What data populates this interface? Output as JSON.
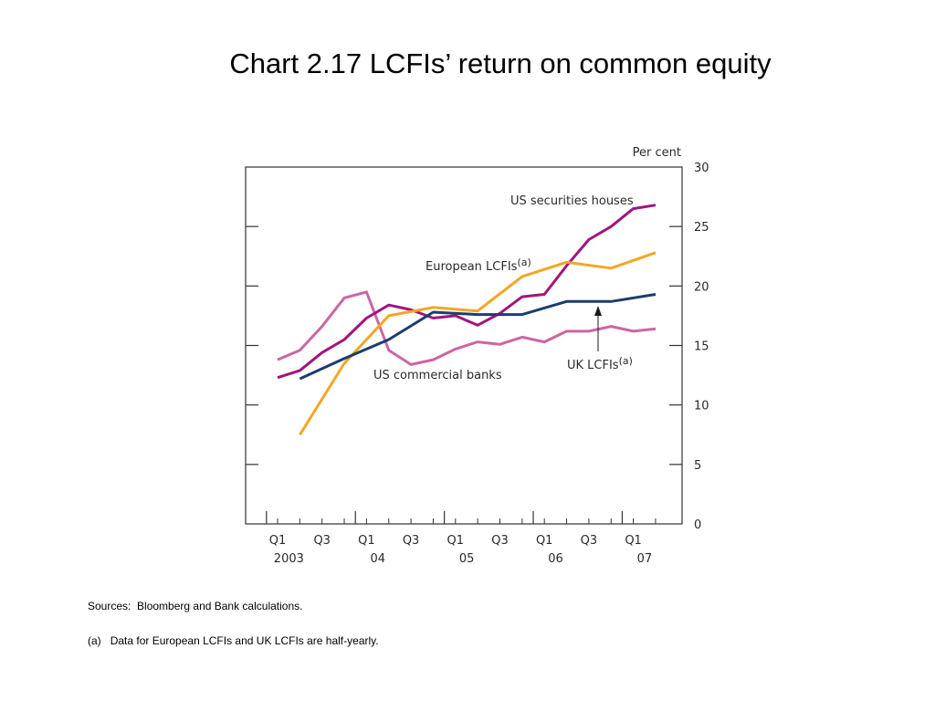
{
  "slide": {
    "title": "Chart 2.17  LCFIs’ return on common equity"
  },
  "footnotes": {
    "sources": "Sources:  Bloomberg and Bank calculations.",
    "note_a_marker": "(a)",
    "note_a_text": "Data for European LCFIs and UK LCFIs are half-yearly."
  },
  "chart_data": {
    "type": "line",
    "unit_label": "Per cent",
    "ylim": [
      0,
      30
    ],
    "yticks": [
      0,
      5,
      10,
      15,
      20,
      25,
      30
    ],
    "x_ticks": [
      {
        "label": "Q1",
        "x": "2003 Q1"
      },
      {
        "label": "Q3",
        "x": "2003 Q3"
      },
      {
        "label": "Q1",
        "x": "2004 Q1"
      },
      {
        "label": "Q3",
        "x": "2004 Q3"
      },
      {
        "label": "Q1",
        "x": "2005 Q1"
      },
      {
        "label": "Q3",
        "x": "2005 Q3"
      },
      {
        "label": "Q1",
        "x": "2006 Q1"
      },
      {
        "label": "Q3",
        "x": "2006 Q3"
      },
      {
        "label": "Q1",
        "x": "2007 Q1"
      }
    ],
    "year_labels": [
      {
        "label": "2003",
        "x": "2003 Q2"
      },
      {
        "label": "04",
        "x": "2004 Q2"
      },
      {
        "label": "05",
        "x": "2005 Q2"
      },
      {
        "label": "06",
        "x": "2006 Q2"
      },
      {
        "label": "07",
        "x": "2007 Q2"
      }
    ],
    "grid": false,
    "series": [
      {
        "name": "US commercial banks",
        "color": "#cc66a3",
        "x": [
          "2003 Q1",
          "2003 Q2",
          "2003 Q3",
          "2003 Q4",
          "2004 Q1",
          "2004 Q2",
          "2004 Q3",
          "2004 Q4",
          "2005 Q1",
          "2005 Q2",
          "2005 Q3",
          "2005 Q4",
          "2006 Q1",
          "2006 Q2",
          "2006 Q3",
          "2006 Q4",
          "2007 Q1",
          "2007 Q2"
        ],
        "y": [
          13.8,
          14.6,
          16.6,
          19.0,
          19.5,
          14.6,
          13.4,
          13.8,
          14.7,
          15.3,
          15.1,
          15.7,
          15.3,
          16.2,
          16.2,
          16.6,
          16.2,
          16.4
        ]
      },
      {
        "name": "US securities houses",
        "color": "#a0157e",
        "x": [
          "2003 Q1",
          "2003 Q2",
          "2003 Q3",
          "2003 Q4",
          "2004 Q1",
          "2004 Q2",
          "2004 Q3",
          "2004 Q4",
          "2005 Q1",
          "2005 Q2",
          "2005 Q3",
          "2005 Q4",
          "2006 Q1",
          "2006 Q2",
          "2006 Q3",
          "2006 Q4",
          "2007 Q1",
          "2007 Q2"
        ],
        "y": [
          12.3,
          12.9,
          14.4,
          15.5,
          17.3,
          18.4,
          18.0,
          17.3,
          17.5,
          16.7,
          17.7,
          19.1,
          19.3,
          21.7,
          23.9,
          25.0,
          26.5,
          26.8
        ]
      },
      {
        "name": "European LCFIs",
        "label_superscript": "(a)",
        "color": "#f5a623",
        "x": [
          "2003 Q2",
          "2003 Q4",
          "2004 Q2",
          "2004 Q4",
          "2005 Q2",
          "2005 Q4",
          "2006 Q2",
          "2006 Q4",
          "2007 Q2"
        ],
        "y": [
          7.5,
          13.5,
          17.5,
          18.2,
          17.9,
          20.8,
          22.0,
          21.5,
          22.8
        ]
      },
      {
        "name": "UK LCFIs",
        "label_superscript": "(a)",
        "color": "#1c3d6e",
        "x": [
          "2003 Q2",
          "2003 Q4",
          "2004 Q2",
          "2004 Q4",
          "2005 Q2",
          "2005 Q4",
          "2006 Q2",
          "2006 Q4",
          "2007 Q2"
        ],
        "y": [
          12.2,
          13.9,
          15.5,
          17.8,
          17.6,
          17.6,
          18.7,
          18.7,
          19.3
        ]
      }
    ]
  }
}
